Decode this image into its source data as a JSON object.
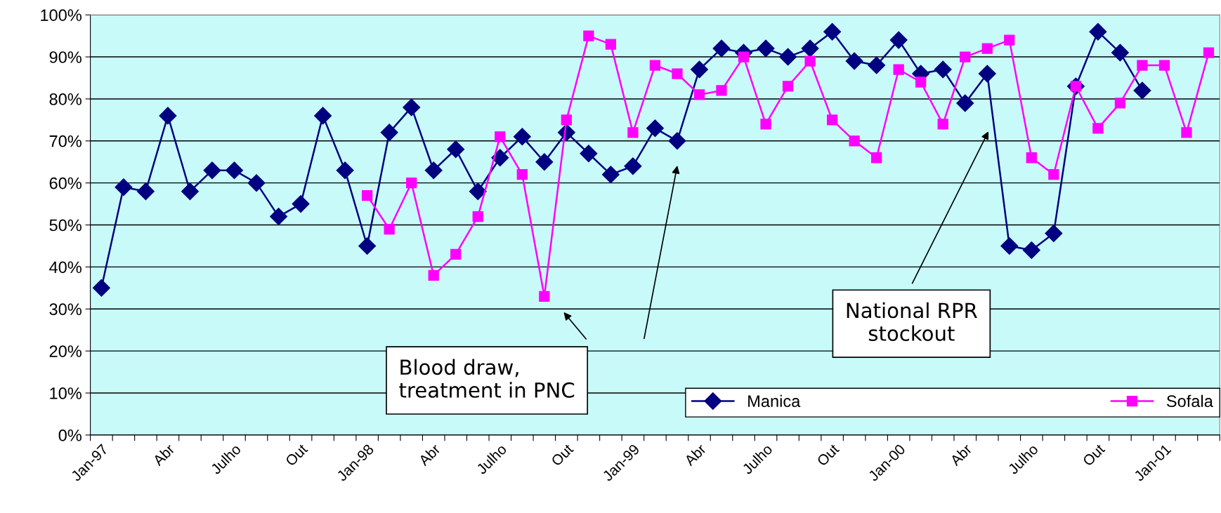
{
  "chart_data": {
    "type": "line",
    "categories": [
      "Jan-97",
      null,
      null,
      "Abr",
      null,
      null,
      "Julho",
      null,
      null,
      "Out",
      null,
      null,
      "Jan-98",
      null,
      null,
      "Abr",
      null,
      null,
      "Julho",
      null,
      null,
      "Out",
      null,
      null,
      "Jan-99",
      null,
      null,
      "Abr",
      null,
      null,
      "Julho",
      null,
      null,
      "Out",
      null,
      null,
      "Jan-00",
      null,
      null,
      "Abr",
      null,
      null,
      "Julho",
      null,
      null,
      "Out",
      null,
      null,
      "Jan-01",
      null,
      null
    ],
    "series": [
      {
        "name": "Manica",
        "color": "#000080",
        "marker": "diamond",
        "values": [
          35,
          59,
          58,
          76,
          58,
          63,
          63,
          60,
          52,
          55,
          76,
          63,
          45,
          72,
          78,
          63,
          68,
          58,
          66,
          71,
          65,
          72,
          67,
          62,
          64,
          73,
          70,
          87,
          92,
          91,
          92,
          90,
          92,
          96,
          89,
          88,
          94,
          86,
          87,
          79,
          86,
          45,
          44,
          48,
          83,
          96,
          91,
          82,
          null,
          null,
          null
        ]
      },
      {
        "name": "Sofala",
        "color": "#ff00ff",
        "marker": "square",
        "values": [
          null,
          null,
          null,
          null,
          null,
          null,
          null,
          null,
          null,
          null,
          null,
          null,
          57,
          49,
          60,
          38,
          43,
          52,
          71,
          62,
          33,
          75,
          95,
          93,
          72,
          88,
          86,
          81,
          82,
          90,
          74,
          83,
          89,
          75,
          70,
          66,
          87,
          84,
          74,
          90,
          92,
          94,
          66,
          62,
          83,
          73,
          79,
          88,
          88,
          72,
          91
        ]
      }
    ],
    "ylim": [
      0,
      100
    ],
    "yticks": [
      {
        "value": 0,
        "label": "0%"
      },
      {
        "value": 10,
        "label": "10%"
      },
      {
        "value": 20,
        "label": "20%"
      },
      {
        "value": 30,
        "label": "30%"
      },
      {
        "value": 40,
        "label": "40%"
      },
      {
        "value": 50,
        "label": "50%"
      },
      {
        "value": 60,
        "label": "60%"
      },
      {
        "value": 70,
        "label": "70%"
      },
      {
        "value": 80,
        "label": "80%"
      },
      {
        "value": 90,
        "label": "90%"
      },
      {
        "value": 100,
        "label": "100%"
      }
    ],
    "grid": "y",
    "legend": "bottom right",
    "line_style": "solid",
    "annotations": [
      "Blood draw,\ntreatment in PNC",
      "National RPR\nstockout"
    ]
  }
}
